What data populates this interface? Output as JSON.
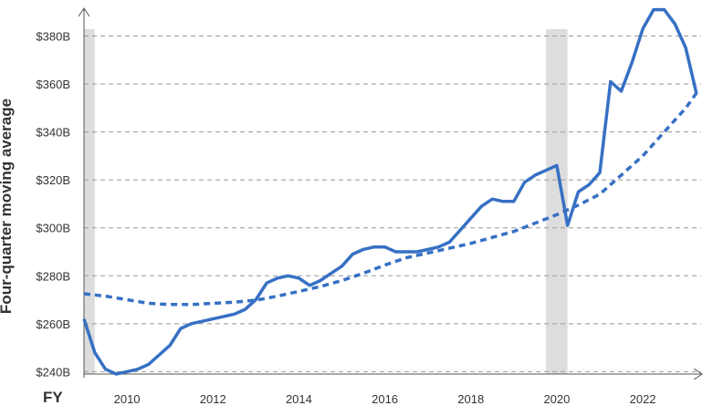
{
  "chart_data": {
    "type": "line",
    "xlabel": "FY",
    "ylabel": "Four-quarter moving average",
    "xlim": [
      2009.0,
      2023.4
    ],
    "ylim": [
      239,
      392
    ],
    "x_ticks": [
      2010,
      2012,
      2014,
      2016,
      2018,
      2020,
      2022
    ],
    "x_tick_labels": [
      "2010",
      "2012",
      "2014",
      "2016",
      "2018",
      "2020",
      "2022"
    ],
    "y_ticks": [
      240,
      260,
      280,
      300,
      320,
      340,
      360,
      380
    ],
    "y_tick_labels": [
      "$240B",
      "$260B",
      "$280B",
      "$300B",
      "$320B",
      "$340B",
      "$360B",
      "$380B"
    ],
    "grid": "horizontal dashed",
    "shaded_periods": [
      [
        2009.0,
        2009.25
      ],
      [
        2019.75,
        2020.25
      ]
    ],
    "colors": {
      "series": "#3670c4",
      "shade": "#dddddd",
      "grid": "#999999",
      "axis": "#555555"
    },
    "series": [
      {
        "style": "solid",
        "x": [
          2009.0,
          2009.25,
          2009.5,
          2009.75,
          2010.0,
          2010.25,
          2010.5,
          2010.75,
          2011.0,
          2011.25,
          2011.5,
          2011.75,
          2012.0,
          2012.25,
          2012.5,
          2012.75,
          2013.0,
          2013.25,
          2013.5,
          2013.75,
          2014.0,
          2014.25,
          2014.5,
          2014.75,
          2015.0,
          2015.25,
          2015.5,
          2015.75,
          2016.0,
          2016.25,
          2016.5,
          2016.75,
          2017.0,
          2017.25,
          2017.5,
          2017.75,
          2018.0,
          2018.25,
          2018.5,
          2018.75,
          2019.0,
          2019.25,
          2019.5,
          2019.75,
          2020.0,
          2020.25,
          2020.5,
          2020.75,
          2021.0,
          2021.25,
          2021.5,
          2021.75,
          2022.0,
          2022.25,
          2022.5,
          2022.75,
          2023.0,
          2023.25
        ],
        "values": [
          262,
          248,
          241,
          239,
          240,
          241,
          243,
          247,
          251,
          258,
          260,
          261,
          262,
          263,
          264,
          266,
          270,
          277,
          279,
          280,
          279,
          276,
          278,
          281,
          284,
          289,
          291,
          292,
          292,
          290,
          290,
          290,
          291,
          292,
          294,
          299,
          304,
          309,
          312,
          311,
          311,
          319,
          322,
          324,
          326,
          301,
          315,
          318,
          323,
          361,
          357,
          369,
          383,
          391,
          391,
          385,
          375,
          356
        ]
      },
      {
        "style": "dashed",
        "x": [
          2009.0,
          2009.5,
          2010.0,
          2010.5,
          2011.0,
          2011.5,
          2012.0,
          2012.5,
          2013.0,
          2013.5,
          2014.0,
          2014.5,
          2015.0,
          2015.5,
          2016.0,
          2016.5,
          2017.0,
          2017.5,
          2018.0,
          2018.5,
          2019.0,
          2019.5,
          2020.0,
          2020.5,
          2021.0,
          2021.5,
          2022.0,
          2022.5,
          2023.0,
          2023.3
        ],
        "values": [
          272.5,
          271.5,
          270,
          268.5,
          268,
          268,
          268.5,
          269,
          269.8,
          271.5,
          273.5,
          275.5,
          278,
          281,
          284.5,
          287.5,
          289.5,
          291.5,
          293.5,
          296,
          298.5,
          302,
          305.5,
          309.5,
          314,
          322,
          330,
          340,
          350,
          357.5
        ]
      }
    ]
  }
}
